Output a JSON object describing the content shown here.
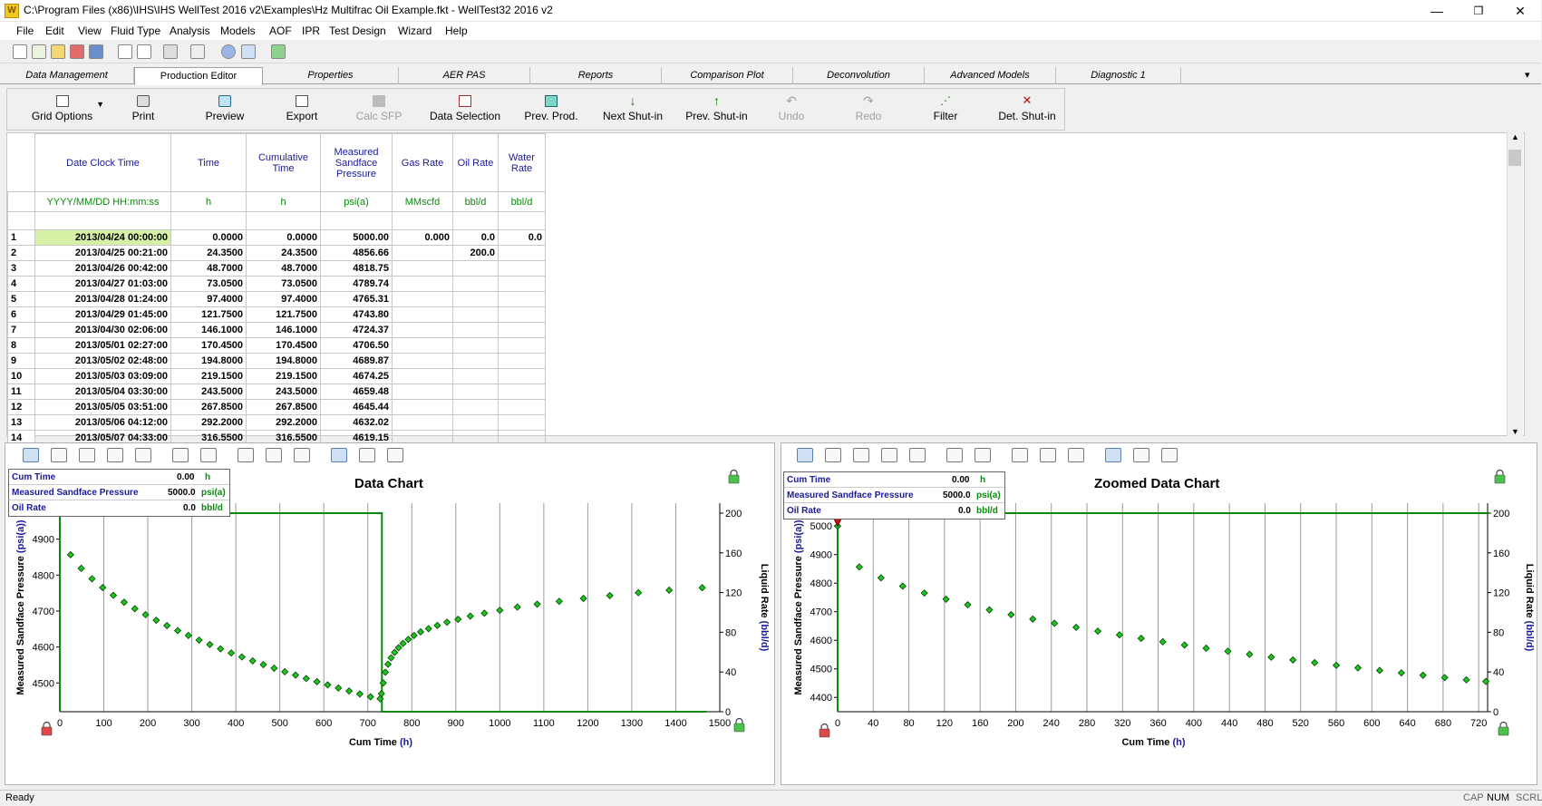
{
  "window": {
    "title": "C:\\Program Files (x86)\\IHS\\IHS WellTest 2016 v2\\Examples\\Hz Multifrac Oil Example.fkt - WellTest32 2016 v2",
    "minimize": "—",
    "maximize": "❐",
    "close": "✕"
  },
  "menu": [
    "File",
    "Edit",
    "View",
    "Fluid Type",
    "Analysis",
    "Models",
    "AOF",
    "IPR",
    "Test Design",
    "Wizard",
    "Help"
  ],
  "tabs": [
    "Data Management",
    "Production Editor",
    "Properties",
    "AER PAS",
    "Reports",
    "Comparison Plot",
    "Deconvolution",
    "Advanced Models",
    "Diagnostic 1"
  ],
  "tab_dropdown": "▾",
  "toolbar": {
    "grid_options": "Grid Options",
    "print": "Print",
    "preview": "Preview",
    "export": "Export",
    "calc_sfp": "Calc SFP",
    "data_selection": "Data Selection",
    "prev_prod": "Prev. Prod.",
    "next_shutin": "Next Shut-in",
    "prev_shutin": "Prev. Shut-in",
    "undo": "Undo",
    "redo": "Redo",
    "filter": "Filter",
    "det_shutin": "Det. Shut-in"
  },
  "grid": {
    "headers": [
      "Date Clock Time",
      "Time",
      "Cumulative Time",
      "Measured Sandface Pressure",
      "Gas Rate",
      "Oil Rate",
      "Water Rate"
    ],
    "units": [
      "YYYY/MM/DD HH:mm:ss",
      "h",
      "h",
      "psi(a)",
      "MMscfd",
      "bbl/d",
      "bbl/d"
    ],
    "rows": [
      [
        "1",
        "2013/04/24 00:00:00",
        "0.0000",
        "0.0000",
        "5000.00",
        "0.000",
        "0.0",
        "0.0"
      ],
      [
        "2",
        "2013/04/25 00:21:00",
        "24.3500",
        "24.3500",
        "4856.66",
        "",
        "200.0",
        ""
      ],
      [
        "3",
        "2013/04/26 00:42:00",
        "48.7000",
        "48.7000",
        "4818.75",
        "",
        "",
        ""
      ],
      [
        "4",
        "2013/04/27 01:03:00",
        "73.0500",
        "73.0500",
        "4789.74",
        "",
        "",
        ""
      ],
      [
        "5",
        "2013/04/28 01:24:00",
        "97.4000",
        "97.4000",
        "4765.31",
        "",
        "",
        ""
      ],
      [
        "6",
        "2013/04/29 01:45:00",
        "121.7500",
        "121.7500",
        "4743.80",
        "",
        "",
        ""
      ],
      [
        "7",
        "2013/04/30 02:06:00",
        "146.1000",
        "146.1000",
        "4724.37",
        "",
        "",
        ""
      ],
      [
        "8",
        "2013/05/01 02:27:00",
        "170.4500",
        "170.4500",
        "4706.50",
        "",
        "",
        ""
      ],
      [
        "9",
        "2013/05/02 02:48:00",
        "194.8000",
        "194.8000",
        "4689.87",
        "",
        "",
        ""
      ],
      [
        "10",
        "2013/05/03 03:09:00",
        "219.1500",
        "219.1500",
        "4674.25",
        "",
        "",
        ""
      ],
      [
        "11",
        "2013/05/04 03:30:00",
        "243.5000",
        "243.5000",
        "4659.48",
        "",
        "",
        ""
      ],
      [
        "12",
        "2013/05/05 03:51:00",
        "267.8500",
        "267.8500",
        "4645.44",
        "",
        "",
        ""
      ],
      [
        "13",
        "2013/05/06 04:12:00",
        "292.2000",
        "292.2000",
        "4632.02",
        "",
        "",
        ""
      ],
      [
        "14",
        "2013/05/07 04:33:00",
        "316.5500",
        "316.5500",
        "4619.15",
        "",
        "",
        ""
      ]
    ]
  },
  "status": {
    "ready": "Ready",
    "cap": "CAP",
    "num": "NUM",
    "scrl": "SCRL"
  },
  "colors": {
    "accent_green": "#0a8a0a",
    "label_blue": "#1a1a99",
    "selected_cell": "#d6f0a6"
  },
  "readout": {
    "cum_time_label": "Cum Time",
    "cum_time_value": "0.00",
    "cum_time_unit": "h",
    "pressure_label": "Measured Sandface Pressure",
    "pressure_value": "5000.0",
    "pressure_unit": "psi(a)",
    "oil_rate_label": "Oil Rate",
    "oil_rate_value": "0.0",
    "oil_rate_unit": "bbl/d"
  },
  "chart_data": [
    {
      "type": "scatter",
      "title": "Data Chart",
      "xlabel": "Cum Time",
      "xunit": "(h)",
      "ylabel": "Measured Sandface Pressure",
      "yunit": "(psi(a))",
      "y2label": "Liquid Rate",
      "y2unit": "(bbl/d)",
      "xlim": [
        0,
        1500
      ],
      "ylim": [
        4420,
        5000
      ],
      "y2lim": [
        0,
        210
      ],
      "xticks": [
        0,
        100,
        200,
        300,
        400,
        500,
        600,
        700,
        800,
        900,
        1000,
        1100,
        1200,
        1300,
        1400,
        1500
      ],
      "yticks": [
        4500,
        4600,
        4700,
        4800,
        4900
      ],
      "y2ticks": [
        0,
        40,
        80,
        120,
        160,
        200
      ],
      "grid": true,
      "series": [
        {
          "values_x": [
            24.35,
            48.7,
            73.05,
            97.4,
            121.75,
            146.1,
            170.45,
            194.8,
            219.15,
            243.5,
            267.85,
            292.2,
            316.55,
            340.9,
            365.25,
            389.6,
            413.95,
            438.3,
            462.65,
            487.0,
            511.35,
            535.7,
            560.05,
            584.4,
            608.75,
            633.1,
            657.45,
            681.8,
            706.15,
            728.0,
            731.0,
            735.0,
            740.0,
            746.0,
            753.0,
            761.0,
            770.0,
            780.0,
            792.0,
            805.0,
            820.0,
            838.0,
            858.0,
            880.0,
            905.0,
            933.0,
            965.0,
            1000.0,
            1040.0,
            1085.0,
            1135.0,
            1190.0,
            1250.0,
            1315.0,
            1385.0,
            1460.0
          ],
          "values_y": [
            4856.66,
            4818.75,
            4789.74,
            4765.31,
            4743.8,
            4724.37,
            4706.5,
            4689.87,
            4674.25,
            4659.48,
            4645.44,
            4632.02,
            4619.15,
            4606.8,
            4594.9,
            4583.4,
            4572.3,
            4561.5,
            4551.1,
            4541.0,
            4531.2,
            4521.7,
            4512.4,
            4503.4,
            4494.6,
            4486.0,
            4477.6,
            4469.4,
            4461.5,
            4456.0,
            4470.0,
            4500.0,
            4530.0,
            4552.0,
            4570.0,
            4585.0,
            4598.0,
            4610.0,
            4621.0,
            4632.0,
            4642.0,
            4651.0,
            4660.0,
            4669.0,
            4677.0,
            4686.0,
            4694.0,
            4702.0,
            4711.0,
            4719.0,
            4727.0,
            4735.0,
            4743.0,
            4751.0,
            4758.0,
            4765.0
          ]
        },
        {
          "name": "Liquid Rate",
          "step_x": [
            0,
            0,
            732,
            732,
            1470
          ],
          "step_y": [
            0,
            200,
            200,
            0,
            0
          ]
        }
      ]
    },
    {
      "type": "scatter",
      "title": "Zoomed Data Chart",
      "xlabel": "Cum Time",
      "xunit": "(h)",
      "ylabel": "Measured Sandface Pressure",
      "yunit": "(psi(a))",
      "y2label": "Liquid Rate",
      "y2unit": "(bbl/d)",
      "xlim": [
        0,
        730
      ],
      "ylim": [
        4350,
        5080
      ],
      "y2lim": [
        0,
        210
      ],
      "xticks": [
        0,
        40,
        80,
        120,
        160,
        200,
        240,
        280,
        320,
        360,
        400,
        440,
        480,
        520,
        560,
        600,
        640,
        680,
        720
      ],
      "yticks": [
        4400,
        4500,
        4600,
        4700,
        4800,
        4900,
        5000
      ],
      "y2ticks": [
        0,
        40,
        80,
        120,
        160,
        200
      ],
      "grid": true,
      "series": [
        {
          "values_x": [
            0,
            24.35,
            48.7,
            73.05,
            97.4,
            121.75,
            146.1,
            170.45,
            194.8,
            219.15,
            243.5,
            267.85,
            292.2,
            316.55,
            340.9,
            365.25,
            389.6,
            413.95,
            438.3,
            462.65,
            487.0,
            511.35,
            535.7,
            560.05,
            584.4,
            608.75,
            633.1,
            657.45,
            681.8,
            706.15,
            728.0
          ],
          "values_y": [
            5000.0,
            4856.66,
            4818.75,
            4789.74,
            4765.31,
            4743.8,
            4724.37,
            4706.5,
            4689.87,
            4674.25,
            4659.48,
            4645.44,
            4632.02,
            4619.15,
            4606.8,
            4594.9,
            4583.4,
            4572.3,
            4561.5,
            4551.1,
            4541.0,
            4531.2,
            4521.7,
            4512.4,
            4503.4,
            4494.6,
            4486.0,
            4477.6,
            4469.4,
            4461.5,
            4456.0
          ]
        },
        {
          "name": "Liquid Rate",
          "step_x": [
            0,
            0,
            730
          ],
          "step_y": [
            0,
            200,
            200
          ]
        }
      ]
    }
  ]
}
